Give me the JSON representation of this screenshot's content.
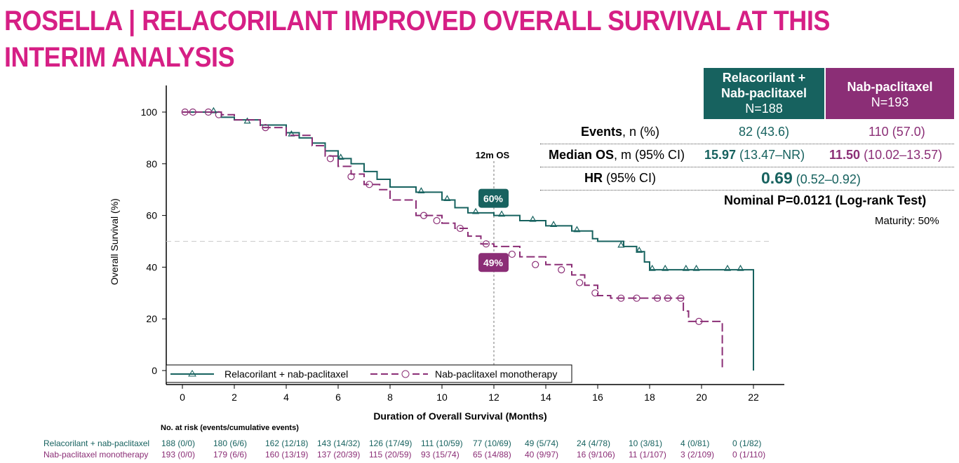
{
  "title": "ROSELLA | RELACORILANT IMPROVED OVERALL SURVIVAL AT THIS INTERIM ANALYSIS",
  "colors": {
    "teal": "#17625f",
    "purple": "#8b2e76",
    "title": "#d61f85"
  },
  "table": {
    "col1_line1": "Relacorilant +",
    "col1_line2": "Nab-paclitaxel",
    "col1_n": "N=188",
    "col2_line1": "Nab-paclitaxel",
    "col2_n": "N=193",
    "events_label": "Events",
    "events_sub": ", n (%)",
    "events_1": "82 (43.6)",
    "events_2": "110 (57.0)",
    "median_label": "Median OS",
    "median_sub": ", m (95% CI)",
    "median_1_bold": "15.97",
    "median_1_ci": " (13.47–NR)",
    "median_2_bold": "11.50",
    "median_2_ci": " (10.02–13.57)",
    "hr_label": "HR",
    "hr_sub": " (95% CI)",
    "hr_bold": "0.69",
    "hr_ci": " (0.52–0.92)",
    "pvalue": "Nominal P=0.0121 (Log-rank Test)",
    "maturity": "Maturity: 50%"
  },
  "chart_data": {
    "type": "line",
    "xlabel": "Duration of Overall Survival (Months)",
    "ylabel": "Overall Survival (%)",
    "xlim": [
      0,
      22
    ],
    "ylim": [
      0,
      100
    ],
    "xticks": [
      "0",
      "2",
      "4",
      "6",
      "8",
      "10",
      "12",
      "14",
      "16",
      "18",
      "20",
      "22"
    ],
    "yticks": [
      "0",
      "20",
      "40",
      "60",
      "80",
      "100"
    ],
    "annotation_12m": "12m OS",
    "label_teal": "60%",
    "label_purple": "49%",
    "series": [
      {
        "name": "Relacorilant + nab-paclitaxel",
        "step": [
          [
            0,
            100
          ],
          [
            1,
            100
          ],
          [
            1.5,
            98
          ],
          [
            2,
            97
          ],
          [
            3,
            95
          ],
          [
            4,
            92
          ],
          [
            4.5,
            90
          ],
          [
            5,
            88
          ],
          [
            5.5,
            85
          ],
          [
            6,
            82
          ],
          [
            6.5,
            80
          ],
          [
            7,
            77
          ],
          [
            7.5,
            74
          ],
          [
            8,
            71
          ],
          [
            9,
            69
          ],
          [
            10,
            66
          ],
          [
            10.5,
            63
          ],
          [
            11,
            61
          ],
          [
            12,
            60
          ],
          [
            13,
            58
          ],
          [
            14,
            56
          ],
          [
            15,
            54
          ],
          [
            15.8,
            51
          ],
          [
            16,
            50
          ],
          [
            17,
            48
          ],
          [
            17.5,
            46
          ],
          [
            17.8,
            42
          ],
          [
            18,
            39
          ],
          [
            22,
            39
          ],
          [
            22,
            0
          ]
        ],
        "censor": [
          [
            1.2,
            100
          ],
          [
            2.5,
            96
          ],
          [
            4.2,
            91
          ],
          [
            6.1,
            82
          ],
          [
            9.2,
            69
          ],
          [
            10.2,
            66
          ],
          [
            11.3,
            61
          ],
          [
            12.3,
            60
          ],
          [
            13.5,
            58
          ],
          [
            14.3,
            56
          ],
          [
            15.2,
            54
          ],
          [
            16.9,
            48
          ],
          [
            17.6,
            46
          ],
          [
            18.1,
            39
          ],
          [
            18.6,
            39
          ],
          [
            19.4,
            39
          ],
          [
            19.8,
            39
          ],
          [
            21,
            39
          ],
          [
            21.5,
            39
          ]
        ]
      },
      {
        "name": "Nab-paclitaxel monotherapy",
        "step": [
          [
            0,
            100
          ],
          [
            1.5,
            99
          ],
          [
            2,
            97
          ],
          [
            3,
            94
          ],
          [
            4,
            91
          ],
          [
            5,
            87
          ],
          [
            5.5,
            83
          ],
          [
            6,
            79
          ],
          [
            6.5,
            76
          ],
          [
            7,
            72
          ],
          [
            7.6,
            70
          ],
          [
            8,
            66
          ],
          [
            9,
            60
          ],
          [
            10,
            57
          ],
          [
            10.5,
            55
          ],
          [
            11,
            52
          ],
          [
            11.5,
            49
          ],
          [
            12,
            48
          ],
          [
            13,
            44
          ],
          [
            14,
            41
          ],
          [
            15,
            37
          ],
          [
            15.5,
            33
          ],
          [
            16,
            29
          ],
          [
            16.5,
            28
          ],
          [
            19,
            28
          ],
          [
            19.3,
            23
          ],
          [
            19.5,
            19
          ],
          [
            20.8,
            19
          ],
          [
            20.8,
            1
          ]
        ],
        "censor": [
          [
            0.1,
            100
          ],
          [
            0.4,
            100
          ],
          [
            1,
            100
          ],
          [
            1.4,
            99
          ],
          [
            3.2,
            94
          ],
          [
            5.7,
            82
          ],
          [
            6.5,
            75
          ],
          [
            7.2,
            72
          ],
          [
            9.3,
            60
          ],
          [
            9.8,
            58
          ],
          [
            10.7,
            55
          ],
          [
            11.7,
            49
          ],
          [
            12.7,
            45
          ],
          [
            13.6,
            41
          ],
          [
            14.6,
            39
          ],
          [
            15.3,
            34
          ],
          [
            15.9,
            30
          ],
          [
            16.9,
            28
          ],
          [
            17.5,
            28
          ],
          [
            18.3,
            28
          ],
          [
            18.7,
            28
          ],
          [
            19.2,
            28
          ],
          [
            19.9,
            19
          ]
        ]
      }
    ],
    "legend": "bottom-left"
  },
  "risk": {
    "header": "No. at risk (events/cumulative events)",
    "rows": [
      {
        "name": "Relacorilant + nab-paclitaxel",
        "values": [
          "188 (0/0)",
          "180 (6/6)",
          "162 (12/18)",
          "143 (14/32)",
          "126 (17/49)",
          "111 (10/59)",
          "77 (10/69)",
          "49 (5/74)",
          "24 (4/78)",
          "10 (3/81)",
          "4 (0/81)",
          "0 (1/82)"
        ]
      },
      {
        "name": "Nab-paclitaxel monotherapy",
        "values": [
          "193 (0/0)",
          "179 (6/6)",
          "160 (13/19)",
          "137 (20/39)",
          "115 (20/59)",
          "93 (15/74)",
          "65 (14/88)",
          "40 (9/97)",
          "16 (9/106)",
          "11 (1/107)",
          "3 (2/109)",
          "0 (1/110)"
        ]
      }
    ]
  }
}
